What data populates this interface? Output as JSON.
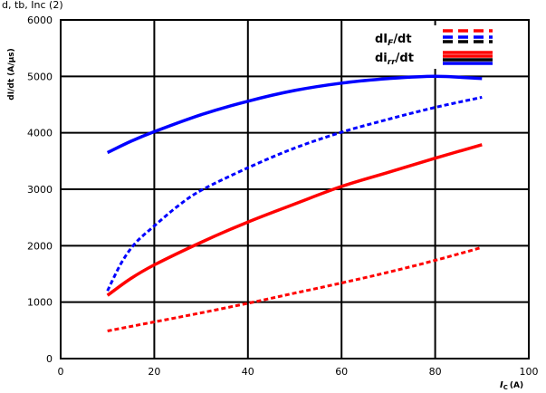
{
  "page": {
    "top_label": "d, tb, Inc (2)"
  },
  "chart_data": {
    "type": "line",
    "title": "",
    "xlabel": "I_C (A)",
    "xlabel_main": "I",
    "xlabel_sub": "C",
    "xlabel_unit": "(A)",
    "ylabel": "dI/dt (A/µs)",
    "xlim": [
      0,
      100
    ],
    "ylim": [
      0,
      6000
    ],
    "x_ticks": [
      0,
      20,
      40,
      60,
      80,
      100
    ],
    "y_ticks": [
      0,
      1000,
      2000,
      3000,
      4000,
      5000,
      6000
    ],
    "x_tick_labels": [
      "0",
      "20",
      "40",
      "60",
      "80",
      "100"
    ],
    "y_tick_labels": [
      "0",
      "1000",
      "2000",
      "3000",
      "4000",
      "5000",
      "6000"
    ],
    "grid": true,
    "legend_position": "top-right",
    "legend": [
      {
        "label": "dI_F/dt",
        "text": "dI",
        "sub": "F",
        "tail": "/dt",
        "style": "dashed",
        "colors": [
          "#ff0000",
          "#0000ff",
          "#000000"
        ]
      },
      {
        "label": "dI_rr/dt",
        "text": "di",
        "sub": "rr",
        "tail": "/dt",
        "style": "solid",
        "colors": [
          "#ff0000",
          "#000000",
          "#0000ff"
        ]
      }
    ],
    "series": [
      {
        "color": "#0000ff",
        "style": "solid",
        "x": [
          10,
          15,
          20,
          30,
          40,
          50,
          60,
          70,
          80,
          90
        ],
        "y": [
          3650,
          3850,
          4020,
          4320,
          4560,
          4750,
          4880,
          4960,
          5000,
          4960
        ]
      },
      {
        "color": "#0000ff",
        "style": "dashed",
        "x": [
          10,
          13,
          16,
          20,
          25,
          30,
          40,
          50,
          60,
          70,
          80,
          90
        ],
        "y": [
          1200,
          1700,
          2050,
          2350,
          2700,
          2980,
          3380,
          3730,
          4010,
          4240,
          4450,
          4630
        ]
      },
      {
        "color": "#ff0000",
        "style": "solid",
        "x": [
          10,
          15,
          20,
          30,
          40,
          50,
          60,
          70,
          80,
          90
        ],
        "y": [
          1120,
          1420,
          1660,
          2060,
          2420,
          2740,
          3050,
          3300,
          3550,
          3790
        ]
      },
      {
        "color": "#ff0000",
        "style": "dashed",
        "x": [
          10,
          20,
          30,
          40,
          50,
          60,
          70,
          80,
          90
        ],
        "y": [
          490,
          650,
          810,
          980,
          1160,
          1340,
          1530,
          1740,
          1970
        ]
      }
    ]
  }
}
